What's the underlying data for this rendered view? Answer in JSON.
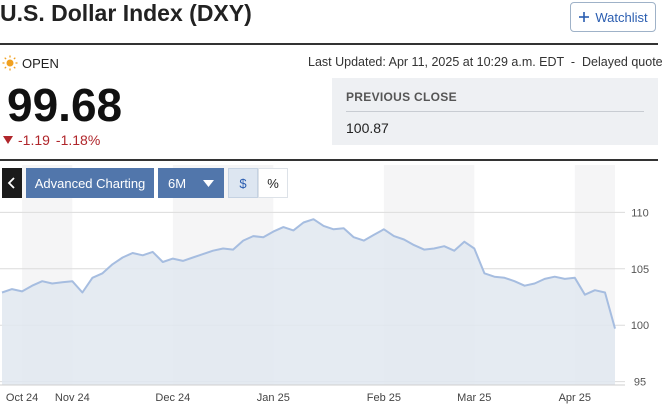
{
  "header": {
    "title": "U.S. Dollar Index (DXY)",
    "watchlist": "Watchlist"
  },
  "quote": {
    "status": "OPEN",
    "last_updated": "Last Updated: Apr 11, 2025 at 10:29 a.m. EDT  -  Delayed quote",
    "price": "99.68",
    "change": "-1.19",
    "change_percent": "-1.18%"
  },
  "previous_close": {
    "label": "PREVIOUS CLOSE",
    "value": "100.87"
  },
  "toolbar": {
    "advanced": "Advanced Charting",
    "range": "6M",
    "dollar": "$",
    "percent": "%"
  },
  "chart_data": {
    "type": "area",
    "categories": [
      null,
      null,
      "Oct 24",
      null,
      null,
      null,
      null,
      "Nov 24",
      null,
      null,
      null,
      null,
      null,
      null,
      null,
      null,
      null,
      "Dec 24",
      null,
      null,
      null,
      null,
      null,
      null,
      null,
      null,
      null,
      "Jan 25",
      null,
      null,
      null,
      null,
      null,
      null,
      null,
      null,
      null,
      null,
      "Feb 25",
      null,
      null,
      null,
      null,
      null,
      null,
      null,
      null,
      "Mar 25",
      null,
      null,
      null,
      null,
      null,
      null,
      null,
      null,
      null,
      "Apr 25",
      null,
      null,
      null,
      null
    ],
    "values": [
      102.9,
      103.2,
      103.0,
      103.5,
      103.9,
      103.7,
      103.8,
      103.9,
      102.9,
      104.2,
      104.6,
      105.4,
      106.0,
      106.4,
      106.2,
      106.5,
      105.6,
      105.9,
      105.7,
      106.0,
      106.3,
      106.6,
      106.8,
      106.7,
      107.5,
      107.9,
      107.8,
      108.3,
      108.7,
      108.4,
      109.1,
      109.4,
      108.8,
      108.5,
      108.6,
      107.8,
      107.5,
      108.0,
      108.5,
      107.9,
      107.6,
      107.1,
      106.7,
      106.8,
      107.0,
      106.6,
      107.4,
      106.8,
      104.6,
      104.3,
      104.2,
      103.9,
      103.5,
      103.7,
      104.1,
      104.3,
      104.1,
      104.2,
      102.7,
      103.1,
      102.9,
      99.7
    ],
    "color": "#a6bde0",
    "fill": "#e1e7f0",
    "ylim": [
      94.7,
      114.2
    ],
    "yticks": [
      95,
      100,
      105,
      110
    ],
    "grid": true
  }
}
